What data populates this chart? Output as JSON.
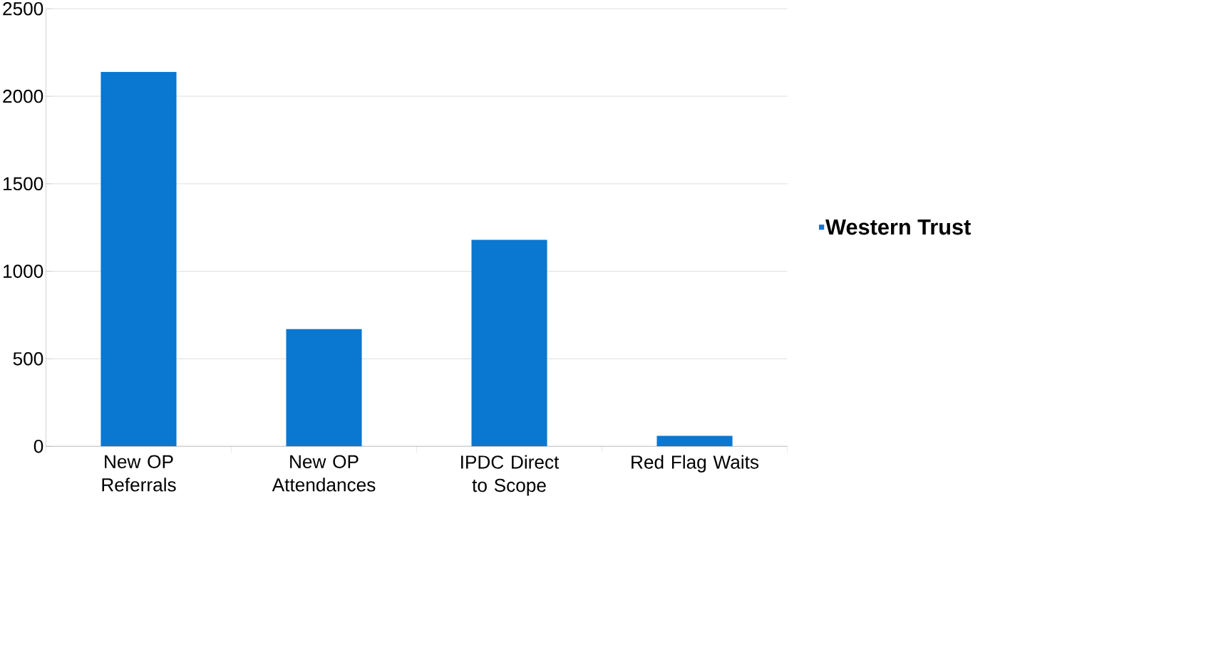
{
  "chart_data": {
    "type": "bar",
    "categories": [
      "New OP Referrals",
      "New OP Attendances",
      "IPDC Direct to Scope",
      "Red Flag Waits"
    ],
    "series": [
      {
        "name": "Western Trust",
        "color": "#0a77d0",
        "values": [
          2140,
          670,
          1180,
          60
        ]
      }
    ],
    "ylim": [
      0,
      2500
    ],
    "yticks": [
      0,
      500,
      1000,
      1500,
      2000,
      2500
    ],
    "grid": "y",
    "legend": "right"
  }
}
